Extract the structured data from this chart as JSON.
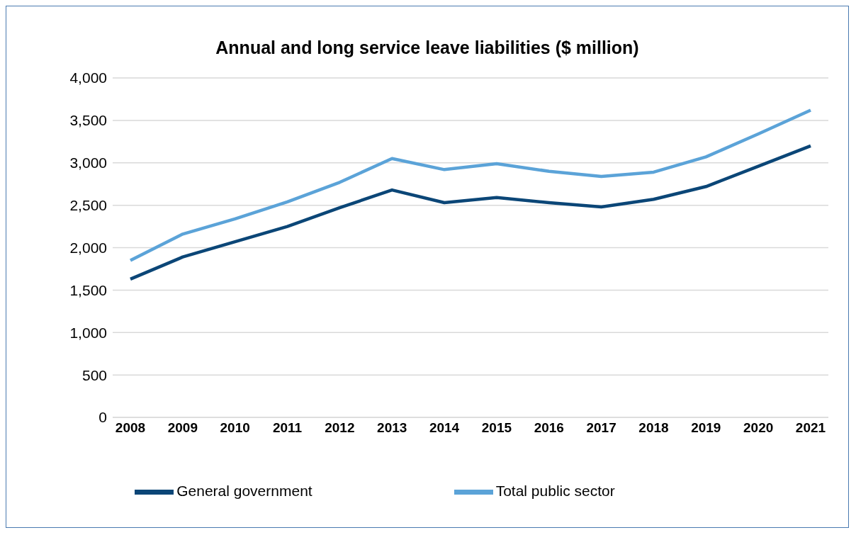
{
  "chart_data": {
    "type": "line",
    "title": "Annual and long service leave liabilities ($ million)",
    "categories": [
      "2008",
      "2009",
      "2010",
      "2011",
      "2012",
      "2013",
      "2014",
      "2015",
      "2016",
      "2017",
      "2018",
      "2019",
      "2020",
      "2021"
    ],
    "series": [
      {
        "name": "General government",
        "color": "#0b4677",
        "values": [
          1630,
          1890,
          2070,
          2250,
          2470,
          2680,
          2530,
          2590,
          2530,
          2480,
          2570,
          2720,
          2960,
          3200
        ]
      },
      {
        "name": "Total public sector",
        "color": "#5ba3d8",
        "values": [
          1850,
          2160,
          2340,
          2540,
          2770,
          3050,
          2920,
          2990,
          2900,
          2840,
          2890,
          3070,
          3340,
          3620
        ]
      }
    ],
    "ylim": [
      0,
      4000
    ],
    "yticks": [
      {
        "value": 0,
        "label": "0"
      },
      {
        "value": 500,
        "label": "500"
      },
      {
        "value": 1000,
        "label": "1,000"
      },
      {
        "value": 1500,
        "label": "1,500"
      },
      {
        "value": 2000,
        "label": "2,000"
      },
      {
        "value": 2500,
        "label": "2,500"
      },
      {
        "value": 3000,
        "label": "3,000"
      },
      {
        "value": 3500,
        "label": "3,500"
      },
      {
        "value": 4000,
        "label": "4,000"
      }
    ],
    "grid": "y",
    "legend": "bottom",
    "marker": "none",
    "line_style": "solid"
  }
}
